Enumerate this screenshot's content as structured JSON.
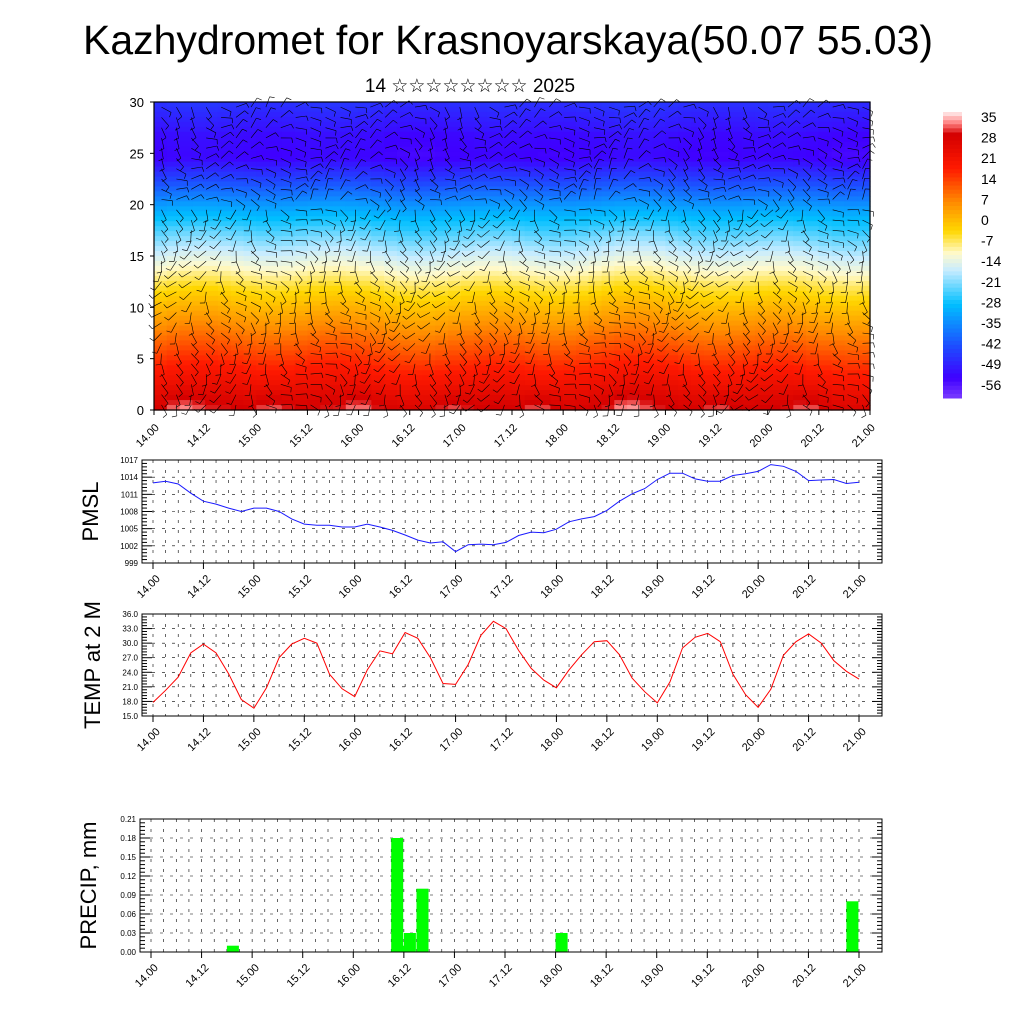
{
  "title": "Kazhydromet for Krasnoyarskaya(50.07 55.03)",
  "subtitle": "14 ☆☆☆☆☆☆☆☆ 2025",
  "x_ticks": [
    "14.00",
    "14.12",
    "15.00",
    "15.12",
    "16.00",
    "16.12",
    "17.00",
    "17.12",
    "18.00",
    "18.12",
    "19.00",
    "19.12",
    "20.00",
    "20.12",
    "21.00"
  ],
  "chart_data": [
    {
      "type": "heatmap",
      "name": "cross-section",
      "ylim": [
        0,
        30
      ],
      "y_ticks": [
        "0",
        "5",
        "10",
        "15",
        "20",
        "25",
        "30"
      ],
      "colorbar_labels": [
        "35",
        "28",
        "21",
        "14",
        "7",
        "0",
        "-7",
        "-14",
        "-21",
        "-28",
        "-35",
        "-42",
        "-49",
        "-56"
      ],
      "colorbar_range": [
        -63,
        38
      ],
      "colors": {
        "cold": "#3f00ff",
        "cool": "#00bfff",
        "neutral": "#fffacd",
        "mild": "#ffd700",
        "warm": "#ff8c00",
        "hot": "#ff1a00",
        "top": "#fff0f0"
      },
      "wind_barbs": true
    },
    {
      "type": "line",
      "ylabel": "PMSL",
      "ylim": [
        999,
        1017
      ],
      "y_ticks": [
        "999",
        "1002",
        "1005",
        "1008",
        "1011",
        "1014",
        "1017"
      ],
      "color": "#1a1aff",
      "values": [
        1013.0,
        1013.3,
        1012.8,
        1011.2,
        1009.8,
        1009.3,
        1008.6,
        1008.0,
        1008.6,
        1008.6,
        1008.0,
        1006.7,
        1005.8,
        1005.6,
        1005.6,
        1005.3,
        1005.3,
        1005.8,
        1005.3,
        1004.7,
        1003.9,
        1003.0,
        1002.5,
        1002.7,
        1001.0,
        1002.2,
        1002.3,
        1002.2,
        1002.6,
        1003.8,
        1004.4,
        1004.3,
        1004.9,
        1006.2,
        1006.7,
        1007.1,
        1008.2,
        1009.8,
        1011.1,
        1012.0,
        1013.6,
        1014.7,
        1014.7,
        1013.7,
        1013.3,
        1013.3,
        1014.3,
        1014.6,
        1015.0,
        1016.2,
        1015.9,
        1015.0,
        1013.4,
        1013.5,
        1013.6,
        1012.9,
        1013.1
      ]
    },
    {
      "type": "line",
      "ylabel": "TEMP at 2 M",
      "ylim": [
        15,
        36
      ],
      "y_ticks": [
        "15.0",
        "18.0",
        "21.0",
        "24.0",
        "27.0",
        "30.0",
        "33.0",
        "36.0"
      ],
      "color": "#ff0000",
      "values": [
        17.8,
        20.3,
        23.0,
        28.0,
        29.8,
        28.0,
        23.7,
        18.4,
        16.6,
        20.8,
        27.0,
        29.8,
        31.0,
        30.0,
        23.6,
        20.6,
        19.0,
        24.5,
        28.4,
        27.8,
        32.2,
        31.0,
        27.0,
        21.7,
        21.5,
        25.6,
        31.6,
        34.5,
        33.0,
        28.5,
        24.8,
        22.4,
        20.8,
        24.5,
        27.6,
        30.3,
        30.5,
        27.6,
        22.8,
        20.0,
        17.7,
        22.0,
        29.0,
        31.2,
        32.0,
        30.3,
        23.6,
        19.4,
        16.8,
        20.5,
        27.5,
        30.3,
        31.9,
        30.0,
        26.4,
        24.2,
        22.6
      ]
    },
    {
      "type": "bar",
      "ylabel": "PRECIP, mm",
      "ylim": [
        0,
        0.21
      ],
      "y_ticks": [
        "0.00",
        "0.03",
        "0.06",
        "0.09",
        "0.12",
        "0.15",
        "0.18",
        "0.21"
      ],
      "color": "#00ff00",
      "bars": [
        {
          "x": 3.0,
          "value": 0.01
        },
        {
          "x": 9.5,
          "value": 0.18
        },
        {
          "x": 9.75,
          "value": 0.01
        },
        {
          "x": 10.0,
          "value": 0.03
        },
        {
          "x": 10.5,
          "value": 0.1
        },
        {
          "x": 16.0,
          "value": 0.03
        },
        {
          "x": 27.5,
          "value": 0.08
        }
      ]
    }
  ]
}
